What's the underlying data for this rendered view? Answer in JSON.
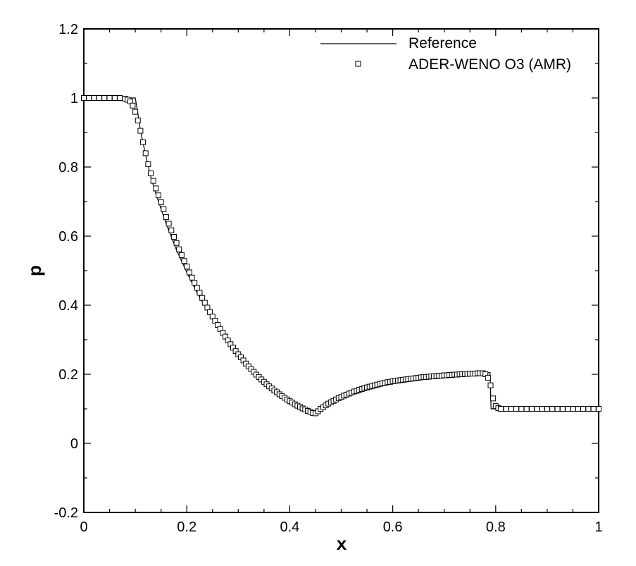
{
  "chart_data": {
    "type": "line",
    "xlabel": "x",
    "ylabel": "p",
    "xlim": [
      0,
      1
    ],
    "ylim": [
      -0.2,
      1.2
    ],
    "x_ticks": [
      "0",
      "0.2",
      "0.4",
      "0.6",
      "0.8",
      "1"
    ],
    "y_ticks": [
      "-0.2",
      "0",
      "0.2",
      "0.4",
      "0.6",
      "0.8",
      "1",
      "1.2"
    ],
    "grid": false,
    "legend_position": "top-right",
    "series": [
      {
        "name": "Reference",
        "style": "line",
        "color": "#000000",
        "points": [
          [
            0.0,
            1.0
          ],
          [
            0.1,
            1.0
          ],
          [
            0.105,
            0.955
          ],
          [
            0.11,
            0.905
          ],
          [
            0.12,
            0.835
          ],
          [
            0.13,
            0.772
          ],
          [
            0.14,
            0.722
          ],
          [
            0.16,
            0.636
          ],
          [
            0.18,
            0.56
          ],
          [
            0.2,
            0.495
          ],
          [
            0.22,
            0.436
          ],
          [
            0.24,
            0.385
          ],
          [
            0.26,
            0.338
          ],
          [
            0.28,
            0.297
          ],
          [
            0.3,
            0.261
          ],
          [
            0.32,
            0.228
          ],
          [
            0.34,
            0.197
          ],
          [
            0.36,
            0.17
          ],
          [
            0.38,
            0.146
          ],
          [
            0.4,
            0.126
          ],
          [
            0.42,
            0.108
          ],
          [
            0.44,
            0.093
          ],
          [
            0.45,
            0.087
          ],
          [
            0.46,
            0.098
          ],
          [
            0.48,
            0.117
          ],
          [
            0.5,
            0.133
          ],
          [
            0.52,
            0.147
          ],
          [
            0.54,
            0.158
          ],
          [
            0.56,
            0.167
          ],
          [
            0.58,
            0.175
          ],
          [
            0.6,
            0.181
          ],
          [
            0.62,
            0.185
          ],
          [
            0.64,
            0.189
          ],
          [
            0.66,
            0.192
          ],
          [
            0.68,
            0.194
          ],
          [
            0.7,
            0.196
          ],
          [
            0.72,
            0.198
          ],
          [
            0.74,
            0.2
          ],
          [
            0.76,
            0.202
          ],
          [
            0.78,
            0.204
          ],
          [
            0.789,
            0.205
          ],
          [
            0.791,
            0.1
          ],
          [
            1.0,
            0.1
          ]
        ]
      },
      {
        "name": "ADER-WENO O3 (AMR)",
        "style": "open-square",
        "color": "#000000",
        "points": [
          [
            0.0,
            1.0
          ],
          [
            0.01,
            1.0
          ],
          [
            0.02,
            1.0
          ],
          [
            0.03,
            1.0
          ],
          [
            0.04,
            1.0
          ],
          [
            0.05,
            1.0
          ],
          [
            0.06,
            1.0
          ],
          [
            0.07,
            1.0
          ],
          [
            0.08,
            0.998
          ],
          [
            0.085,
            0.995
          ],
          [
            0.09,
            0.99
          ],
          [
            0.095,
            0.978
          ],
          [
            0.1,
            0.96
          ],
          [
            0.105,
            0.935
          ],
          [
            0.11,
            0.905
          ],
          [
            0.115,
            0.872
          ],
          [
            0.12,
            0.84
          ],
          [
            0.125,
            0.808
          ],
          [
            0.13,
            0.782
          ],
          [
            0.135,
            0.76
          ],
          [
            0.14,
            0.738
          ],
          [
            0.145,
            0.718
          ],
          [
            0.15,
            0.698
          ],
          [
            0.155,
            0.678
          ],
          [
            0.16,
            0.655
          ],
          [
            0.165,
            0.636
          ],
          [
            0.17,
            0.617
          ],
          [
            0.175,
            0.598
          ],
          [
            0.18,
            0.58
          ],
          [
            0.185,
            0.562
          ],
          [
            0.19,
            0.545
          ],
          [
            0.195,
            0.528
          ],
          [
            0.2,
            0.512
          ],
          [
            0.205,
            0.495
          ],
          [
            0.21,
            0.48
          ],
          [
            0.215,
            0.465
          ],
          [
            0.22,
            0.45
          ],
          [
            0.225,
            0.436
          ],
          [
            0.23,
            0.421
          ],
          [
            0.235,
            0.407
          ],
          [
            0.24,
            0.393
          ],
          [
            0.245,
            0.38
          ],
          [
            0.25,
            0.367
          ],
          [
            0.255,
            0.355
          ],
          [
            0.26,
            0.343
          ],
          [
            0.265,
            0.331
          ],
          [
            0.27,
            0.32
          ],
          [
            0.275,
            0.309
          ],
          [
            0.28,
            0.298
          ],
          [
            0.285,
            0.287
          ],
          [
            0.29,
            0.277
          ],
          [
            0.295,
            0.267
          ],
          [
            0.3,
            0.258
          ],
          [
            0.305,
            0.249
          ],
          [
            0.31,
            0.24
          ],
          [
            0.315,
            0.231
          ],
          [
            0.32,
            0.223
          ],
          [
            0.325,
            0.215
          ],
          [
            0.33,
            0.207
          ],
          [
            0.335,
            0.199
          ],
          [
            0.34,
            0.192
          ],
          [
            0.345,
            0.185
          ],
          [
            0.35,
            0.178
          ],
          [
            0.355,
            0.171
          ],
          [
            0.36,
            0.165
          ],
          [
            0.365,
            0.159
          ],
          [
            0.37,
            0.153
          ],
          [
            0.375,
            0.148
          ],
          [
            0.38,
            0.142
          ],
          [
            0.385,
            0.137
          ],
          [
            0.39,
            0.132
          ],
          [
            0.395,
            0.127
          ],
          [
            0.4,
            0.122
          ],
          [
            0.405,
            0.118
          ],
          [
            0.41,
            0.113
          ],
          [
            0.415,
            0.109
          ],
          [
            0.42,
            0.105
          ],
          [
            0.425,
            0.101
          ],
          [
            0.43,
            0.098
          ],
          [
            0.435,
            0.094
          ],
          [
            0.44,
            0.091
          ],
          [
            0.445,
            0.088
          ],
          [
            0.45,
            0.087
          ],
          [
            0.455,
            0.093
          ],
          [
            0.46,
            0.1
          ],
          [
            0.465,
            0.105
          ],
          [
            0.47,
            0.11
          ],
          [
            0.475,
            0.115
          ],
          [
            0.48,
            0.119
          ],
          [
            0.485,
            0.123
          ],
          [
            0.49,
            0.127
          ],
          [
            0.495,
            0.131
          ],
          [
            0.5,
            0.134
          ],
          [
            0.505,
            0.138
          ],
          [
            0.51,
            0.141
          ],
          [
            0.515,
            0.144
          ],
          [
            0.52,
            0.147
          ],
          [
            0.525,
            0.15
          ],
          [
            0.53,
            0.152
          ],
          [
            0.535,
            0.155
          ],
          [
            0.54,
            0.157
          ],
          [
            0.545,
            0.16
          ],
          [
            0.55,
            0.162
          ],
          [
            0.555,
            0.164
          ],
          [
            0.56,
            0.166
          ],
          [
            0.565,
            0.168
          ],
          [
            0.57,
            0.17
          ],
          [
            0.575,
            0.172
          ],
          [
            0.58,
            0.174
          ],
          [
            0.585,
            0.175
          ],
          [
            0.59,
            0.177
          ],
          [
            0.595,
            0.178
          ],
          [
            0.6,
            0.18
          ],
          [
            0.605,
            0.181
          ],
          [
            0.61,
            0.182
          ],
          [
            0.615,
            0.183
          ],
          [
            0.62,
            0.184
          ],
          [
            0.625,
            0.185
          ],
          [
            0.63,
            0.186
          ],
          [
            0.635,
            0.187
          ],
          [
            0.64,
            0.188
          ],
          [
            0.645,
            0.189
          ],
          [
            0.65,
            0.19
          ],
          [
            0.655,
            0.191
          ],
          [
            0.66,
            0.192
          ],
          [
            0.665,
            0.192
          ],
          [
            0.67,
            0.193
          ],
          [
            0.675,
            0.194
          ],
          [
            0.68,
            0.194
          ],
          [
            0.685,
            0.195
          ],
          [
            0.69,
            0.196
          ],
          [
            0.695,
            0.196
          ],
          [
            0.7,
            0.197
          ],
          [
            0.705,
            0.197
          ],
          [
            0.71,
            0.198
          ],
          [
            0.715,
            0.198
          ],
          [
            0.72,
            0.199
          ],
          [
            0.725,
            0.199
          ],
          [
            0.73,
            0.2
          ],
          [
            0.735,
            0.2
          ],
          [
            0.74,
            0.201
          ],
          [
            0.745,
            0.201
          ],
          [
            0.75,
            0.202
          ],
          [
            0.755,
            0.202
          ],
          [
            0.76,
            0.202
          ],
          [
            0.765,
            0.203
          ],
          [
            0.77,
            0.203
          ],
          [
            0.775,
            0.203
          ],
          [
            0.78,
            0.2
          ],
          [
            0.785,
            0.19
          ],
          [
            0.79,
            0.168
          ],
          [
            0.795,
            0.13
          ],
          [
            0.8,
            0.108
          ],
          [
            0.805,
            0.102
          ],
          [
            0.81,
            0.1
          ],
          [
            0.82,
            0.1
          ],
          [
            0.83,
            0.1
          ],
          [
            0.84,
            0.1
          ],
          [
            0.85,
            0.1
          ],
          [
            0.86,
            0.1
          ],
          [
            0.87,
            0.1
          ],
          [
            0.88,
            0.1
          ],
          [
            0.89,
            0.1
          ],
          [
            0.9,
            0.1
          ],
          [
            0.91,
            0.1
          ],
          [
            0.92,
            0.1
          ],
          [
            0.93,
            0.1
          ],
          [
            0.94,
            0.1
          ],
          [
            0.95,
            0.1
          ],
          [
            0.96,
            0.1
          ],
          [
            0.97,
            0.1
          ],
          [
            0.98,
            0.1
          ],
          [
            0.99,
            0.1
          ],
          [
            1.0,
            0.1
          ]
        ]
      }
    ]
  }
}
